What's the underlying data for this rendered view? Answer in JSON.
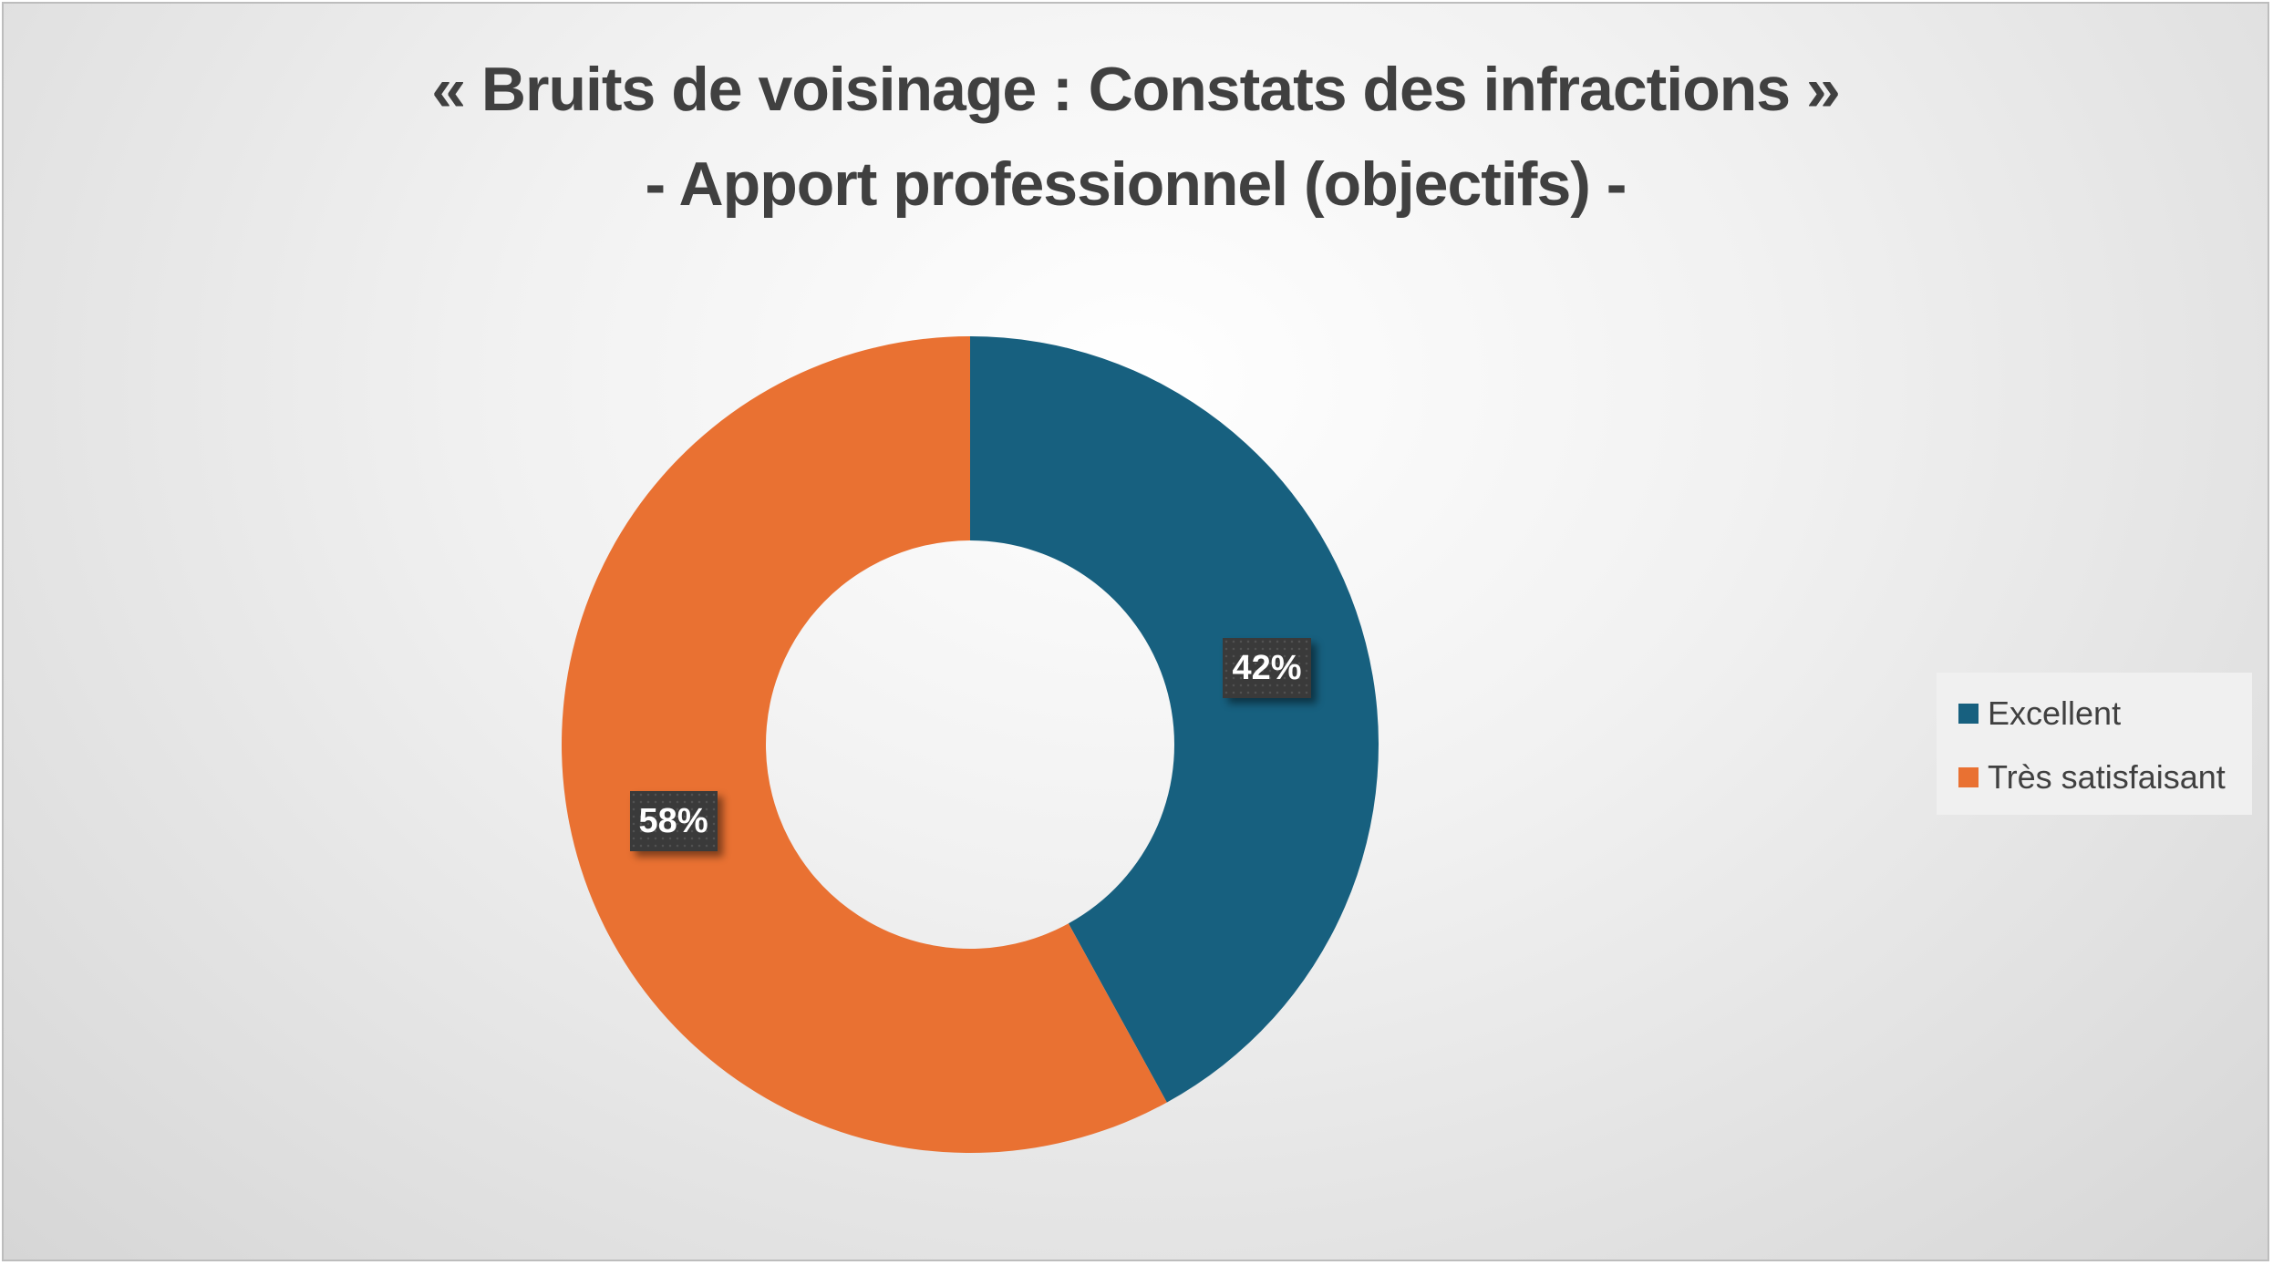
{
  "chart_data": {
    "type": "pie",
    "subtype": "donut",
    "title_lines": [
      "« Bruits de voisinage : Constats des infractions »",
      "- Apport professionnel (objectifs) -"
    ],
    "series": [
      {
        "label": "Excellent",
        "value": 42,
        "display": "42%",
        "color": "#17607f"
      },
      {
        "label": "Très satisfaisant",
        "value": 58,
        "display": "58%",
        "color": "#e97132"
      }
    ],
    "legend_position": "right"
  }
}
